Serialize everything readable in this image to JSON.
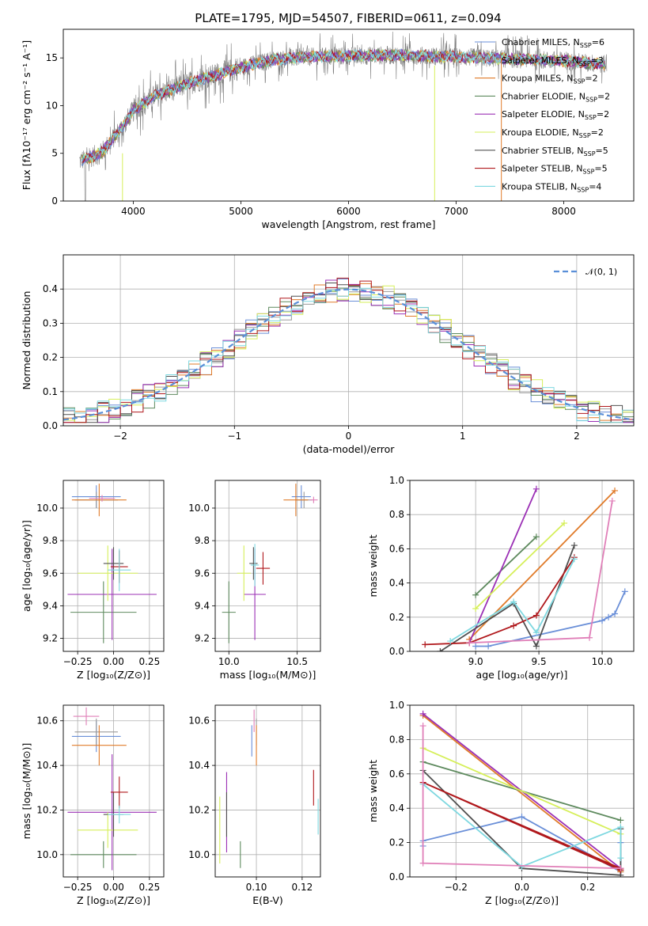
{
  "title": "PLATE=1795, MJD=54507, FIBERID=0611, z=0.094",
  "colors": {
    "chabrier_miles": "#6a8fd8",
    "salpeter_miles": "#9a9a9a",
    "kroupa_miles": "#e07b2a",
    "chabrier_elodie": "#5e8a5e",
    "salpeter_elodie": "#9b30b5",
    "kroupa_elodie": "#d6ef5a",
    "chabrier_stelib": "#505050",
    "salpeter_stelib": "#b0181c",
    "kroupa_stelib": "#7ed8e0",
    "pink": "#e07fb8",
    "gauss": "#5a8fd8"
  },
  "chart_data": [
    {
      "id": "spectrum",
      "type": "line",
      "xlabel": "wavelength [Angstrom, rest frame]",
      "ylabel": "Flux [fλ10⁻¹⁷ erg cm⁻² s⁻¹ A⁻¹]",
      "xlim": [
        3350,
        8650
      ],
      "ylim": [
        0,
        18
      ],
      "xticks": [
        "4000",
        "5000",
        "6000",
        "7000",
        "8000"
      ],
      "yticks": [
        "0",
        "5",
        "10",
        "15"
      ],
      "legend_position": "top-right",
      "series": [
        {
          "name": "Chabrier MILES, N",
          "sub": "SSP",
          "suffix": "=6"
        },
        {
          "name": "Salpeter MILES, N",
          "sub": "SSP",
          "suffix": "=3"
        },
        {
          "name": "Kroupa MILES, N",
          "sub": "SSP",
          "suffix": "=2"
        },
        {
          "name": "Chabrier ELODIE, N",
          "sub": "SSP",
          "suffix": "=2"
        },
        {
          "name": "Salpeter ELODIE, N",
          "sub": "SSP",
          "suffix": "=2"
        },
        {
          "name": "Kroupa ELODIE, N",
          "sub": "SSP",
          "suffix": "=2"
        },
        {
          "name": "Chabrier STELIB, N",
          "sub": "SSP",
          "suffix": "=5"
        },
        {
          "name": "Salpeter STELIB, N",
          "sub": "SSP",
          "suffix": "=5"
        },
        {
          "name": "Kroupa STELIB, N",
          "sub": "SSP",
          "suffix": "=4"
        }
      ],
      "continuum": [
        [
          3500,
          4.2
        ],
        [
          3700,
          5.0
        ],
        [
          3900,
          7.8
        ],
        [
          4000,
          9.5
        ],
        [
          4200,
          11.0
        ],
        [
          4500,
          12.3
        ],
        [
          4800,
          13.3
        ],
        [
          5000,
          14.0
        ],
        [
          5300,
          14.8
        ],
        [
          5600,
          15.1
        ],
        [
          6000,
          15.2
        ],
        [
          6500,
          15.3
        ],
        [
          7000,
          15.1
        ],
        [
          7500,
          14.9
        ],
        [
          8000,
          14.7
        ],
        [
          8400,
          14.3
        ]
      ]
    },
    {
      "id": "residual-hist",
      "type": "bar",
      "xlabel": "(data-model)/error",
      "ylabel": "Normed distribution",
      "xlim": [
        -2.5,
        2.5
      ],
      "ylim": [
        0,
        0.5
      ],
      "xticks": [
        "−2",
        "−1",
        "0",
        "1",
        "2"
      ],
      "yticks": [
        "0.0",
        "0.1",
        "0.2",
        "0.3",
        "0.4"
      ],
      "legend": "𝒩(0, 1)",
      "legend_position": "top-right",
      "bin_width": 0.1,
      "gaussian": {
        "mean": 0,
        "sigma": 1
      }
    },
    {
      "id": "age-vs-Z",
      "type": "scatter",
      "xlabel": "Z [log₁₀(Z/Z⊙)]",
      "ylabel": "age  [log₁₀(age/yr)]",
      "xlim": [
        -0.35,
        0.35
      ],
      "ylim": [
        9.12,
        10.17
      ],
      "xticks": [
        "−0.25",
        "0.00",
        "0.25"
      ],
      "yticks": [
        "9.2",
        "9.4",
        "9.6",
        "9.8",
        "10.0"
      ],
      "points": [
        {
          "x": -0.12,
          "y": 10.07,
          "xerr": 0.17,
          "yerr": 0.07,
          "c": "chabrier_miles"
        },
        {
          "x": -0.12,
          "y": 10.05,
          "xerr": 0.15,
          "yerr": 0.05,
          "c": "salpeter_miles"
        },
        {
          "x": -0.1,
          "y": 10.05,
          "xerr": 0.19,
          "yerr": 0.1,
          "c": "kroupa_miles"
        },
        {
          "x": -0.07,
          "y": 9.36,
          "xerr": 0.23,
          "yerr": 0.19,
          "c": "chabrier_elodie"
        },
        {
          "x": -0.01,
          "y": 9.47,
          "xerr": 0.31,
          "yerr": 0.28,
          "c": "salpeter_elodie"
        },
        {
          "x": -0.04,
          "y": 9.6,
          "xerr": 0.21,
          "yerr": 0.17,
          "c": "kroupa_elodie"
        },
        {
          "x": 0.0,
          "y": 9.66,
          "xerr": 0.07,
          "yerr": 0.1,
          "c": "chabrier_stelib"
        },
        {
          "x": 0.04,
          "y": 9.64,
          "xerr": 0.06,
          "yerr": 0.1,
          "c": "salpeter_stelib"
        },
        {
          "x": 0.04,
          "y": 9.62,
          "xerr": 0.08,
          "yerr": 0.13,
          "c": "kroupa_stelib"
        },
        {
          "x": -0.08,
          "y": 10.06,
          "xerr": 0.09,
          "yerr": 0.02,
          "c": "pink"
        }
      ]
    },
    {
      "id": "age-vs-mass",
      "type": "scatter",
      "xlabel": "mass [log₁₀(M/M⊙)]",
      "ylabel": "",
      "xlim": [
        9.9,
        10.67
      ],
      "ylim": [
        9.12,
        10.17
      ],
      "xticks": [
        "10.0",
        "10.5"
      ],
      "yticks": [
        "9.2",
        "9.4",
        "9.6",
        "9.8",
        "10.0"
      ],
      "points": [
        {
          "x": 10.53,
          "y": 10.07,
          "xerr": 0.07,
          "yerr": 0.07,
          "c": "chabrier_miles"
        },
        {
          "x": 10.55,
          "y": 10.05,
          "xerr": 0.06,
          "yerr": 0.05,
          "c": "salpeter_miles"
        },
        {
          "x": 10.49,
          "y": 10.05,
          "xerr": 0.09,
          "yerr": 0.1,
          "c": "kroupa_miles"
        },
        {
          "x": 10.0,
          "y": 9.36,
          "xerr": 0.05,
          "yerr": 0.19,
          "c": "chabrier_elodie"
        },
        {
          "x": 10.19,
          "y": 9.47,
          "xerr": 0.08,
          "yerr": 0.28,
          "c": "salpeter_elodie"
        },
        {
          "x": 10.11,
          "y": 9.6,
          "xerr": 0.05,
          "yerr": 0.17,
          "c": "kroupa_elodie"
        },
        {
          "x": 10.18,
          "y": 9.66,
          "xerr": 0.03,
          "yerr": 0.1,
          "c": "chabrier_stelib"
        },
        {
          "x": 10.25,
          "y": 9.63,
          "xerr": 0.05,
          "yerr": 0.1,
          "c": "salpeter_stelib"
        },
        {
          "x": 10.19,
          "y": 9.65,
          "xerr": 0.03,
          "yerr": 0.13,
          "c": "kroupa_stelib"
        },
        {
          "x": 10.62,
          "y": 10.05,
          "xerr": 0.03,
          "yerr": 0.02,
          "c": "pink"
        }
      ]
    },
    {
      "id": "massweight-vs-age",
      "type": "line",
      "xlabel": "age  [log₁₀(age/yr)]",
      "ylabel": "mass weight",
      "xlim": [
        8.48,
        10.25
      ],
      "ylim": [
        0,
        1.0
      ],
      "xticks": [
        "9.0",
        "9.5",
        "10.0"
      ],
      "yticks": [
        "0.0",
        "0.2",
        "0.4",
        "0.6",
        "0.8",
        "1.0"
      ],
      "series": [
        {
          "c": "chabrier_miles",
          "pts": [
            [
              9.0,
              0.03
            ],
            [
              9.1,
              0.03
            ],
            [
              10.0,
              0.18
            ],
            [
              10.05,
              0.2
            ],
            [
              10.1,
              0.22
            ],
            [
              10.18,
              0.35
            ]
          ]
        },
        {
          "c": "kroupa_miles",
          "pts": [
            [
              8.95,
              0.07
            ],
            [
              10.1,
              0.94
            ]
          ]
        },
        {
          "c": "chabrier_elodie",
          "pts": [
            [
              9.0,
              0.33
            ],
            [
              9.48,
              0.67
            ]
          ]
        },
        {
          "c": "salpeter_elodie",
          "pts": [
            [
              8.95,
              0.05
            ],
            [
              9.48,
              0.95
            ]
          ]
        },
        {
          "c": "kroupa_elodie",
          "pts": [
            [
              9.0,
              0.25
            ],
            [
              9.7,
              0.75
            ]
          ]
        },
        {
          "c": "chabrier_stelib",
          "pts": [
            [
              8.72,
              0.0
            ],
            [
              9.3,
              0.28
            ],
            [
              9.48,
              0.03
            ],
            [
              9.78,
              0.62
            ]
          ]
        },
        {
          "c": "salpeter_stelib",
          "pts": [
            [
              8.6,
              0.04
            ],
            [
              8.95,
              0.05
            ],
            [
              9.3,
              0.15
            ],
            [
              9.48,
              0.21
            ],
            [
              9.78,
              0.55
            ]
          ]
        },
        {
          "c": "kroupa_stelib",
          "pts": [
            [
              8.8,
              0.06
            ],
            [
              9.3,
              0.29
            ],
            [
              9.48,
              0.11
            ],
            [
              9.78,
              0.54
            ]
          ]
        },
        {
          "c": "pink",
          "pts": [
            [
              8.95,
              0.05
            ],
            [
              9.9,
              0.08
            ],
            [
              10.08,
              0.88
            ]
          ]
        }
      ]
    },
    {
      "id": "mass-vs-Z",
      "type": "scatter",
      "xlabel": "Z [log₁₀(Z/Z⊙)]",
      "ylabel": "mass [log₁₀(M/M⊙)]",
      "xlim": [
        -0.35,
        0.35
      ],
      "ylim": [
        9.9,
        10.67
      ],
      "xticks": [
        "−0.25",
        "0.00",
        "0.25"
      ],
      "yticks": [
        "10.0",
        "10.2",
        "10.4",
        "10.6"
      ],
      "points": [
        {
          "x": -0.12,
          "y": 10.53,
          "xerr": 0.17,
          "yerr": 0.07,
          "c": "chabrier_miles"
        },
        {
          "x": -0.12,
          "y": 10.55,
          "xerr": 0.15,
          "yerr": 0.06,
          "c": "salpeter_miles"
        },
        {
          "x": -0.1,
          "y": 10.49,
          "xerr": 0.19,
          "yerr": 0.09,
          "c": "kroupa_miles"
        },
        {
          "x": -0.07,
          "y": 10.0,
          "xerr": 0.23,
          "yerr": 0.06,
          "c": "chabrier_elodie"
        },
        {
          "x": -0.01,
          "y": 10.19,
          "xerr": 0.31,
          "yerr": 0.26,
          "c": "salpeter_elodie"
        },
        {
          "x": -0.04,
          "y": 10.11,
          "xerr": 0.21,
          "yerr": 0.08,
          "c": "kroupa_elodie"
        },
        {
          "x": 0.0,
          "y": 10.18,
          "xerr": 0.07,
          "yerr": 0.1,
          "c": "chabrier_stelib"
        },
        {
          "x": 0.04,
          "y": 10.28,
          "xerr": 0.06,
          "yerr": 0.07,
          "c": "salpeter_stelib"
        },
        {
          "x": 0.04,
          "y": 10.18,
          "xerr": 0.08,
          "yerr": 0.04,
          "c": "kroupa_stelib"
        },
        {
          "x": -0.19,
          "y": 10.62,
          "xerr": 0.09,
          "yerr": 0.04,
          "c": "pink"
        }
      ]
    },
    {
      "id": "mass-vs-ebv",
      "type": "scatter",
      "xlabel": "E(B-V)",
      "ylabel": "",
      "xlim": [
        0.082,
        0.128
      ],
      "ylim": [
        9.9,
        10.67
      ],
      "xticks": [
        "0.10",
        "0.12"
      ],
      "yticks": [
        "10.0",
        "10.2",
        "10.4",
        "10.6"
      ],
      "points": [
        {
          "x": 0.098,
          "y": 10.51,
          "xerr": 0.0,
          "yerr": 0.07,
          "c": "chabrier_miles"
        },
        {
          "x": 0.1,
          "y": 10.55,
          "xerr": 0.0,
          "yerr": 0.06,
          "c": "salpeter_miles"
        },
        {
          "x": 0.1,
          "y": 10.49,
          "xerr": 0.0,
          "yerr": 0.09,
          "c": "kroupa_miles"
        },
        {
          "x": 0.093,
          "y": 10.0,
          "xerr": 0.0,
          "yerr": 0.06,
          "c": "chabrier_elodie"
        },
        {
          "x": 0.087,
          "y": 10.19,
          "xerr": 0.0,
          "yerr": 0.18,
          "c": "salpeter_elodie"
        },
        {
          "x": 0.084,
          "y": 10.11,
          "xerr": 0.0,
          "yerr": 0.15,
          "c": "kroupa_elodie"
        },
        {
          "x": 0.087,
          "y": 10.18,
          "xerr": 0.0,
          "yerr": 0.1,
          "c": "chabrier_stelib"
        },
        {
          "x": 0.125,
          "y": 10.3,
          "xerr": 0.0,
          "yerr": 0.08,
          "c": "salpeter_stelib"
        },
        {
          "x": 0.127,
          "y": 10.17,
          "xerr": 0.0,
          "yerr": 0.08,
          "c": "kroupa_stelib"
        },
        {
          "x": 0.099,
          "y": 10.6,
          "xerr": 0.0,
          "yerr": 0.05,
          "c": "pink"
        }
      ]
    },
    {
      "id": "massweight-vs-Z",
      "type": "line",
      "xlabel": "Z [log₁₀(Z/Z⊙)]",
      "ylabel": "mass weight",
      "xlim": [
        -0.34,
        0.34
      ],
      "ylim": [
        0,
        1.0
      ],
      "xticks": [
        "−0.2",
        "0.0",
        "0.2"
      ],
      "yticks": [
        "0.0",
        "0.2",
        "0.4",
        "0.6",
        "0.8",
        "1.0"
      ],
      "series": [
        {
          "c": "chabrier_miles",
          "pts": [
            [
              -0.3,
              0.18
            ],
            [
              -0.3,
              0.21
            ],
            [
              0.0,
              0.35
            ],
            [
              0.3,
              0.03
            ],
            [
              0.3,
              0.2
            ]
          ]
        },
        {
          "c": "kroupa_miles",
          "pts": [
            [
              -0.3,
              0.94
            ],
            [
              0.3,
              0.03
            ]
          ]
        },
        {
          "c": "chabrier_elodie",
          "pts": [
            [
              -0.3,
              0.67
            ],
            [
              0.3,
              0.33
            ]
          ]
        },
        {
          "c": "salpeter_elodie",
          "pts": [
            [
              -0.3,
              0.95
            ],
            [
              0.3,
              0.05
            ]
          ]
        },
        {
          "c": "kroupa_elodie",
          "pts": [
            [
              -0.3,
              0.75
            ],
            [
              0.3,
              0.25
            ]
          ]
        },
        {
          "c": "chabrier_stelib",
          "pts": [
            [
              -0.3,
              0.62
            ],
            [
              0.0,
              0.05
            ],
            [
              0.3,
              0.01
            ],
            [
              0.3,
              0.28
            ]
          ]
        },
        {
          "c": "salpeter_stelib",
          "pts": [
            [
              0.3,
              0.04
            ],
            [
              0.3,
              0.05
            ],
            [
              -0.3,
              0.55
            ],
            [
              0.3,
              0.04
            ]
          ]
        },
        {
          "c": "kroupa_stelib",
          "pts": [
            [
              -0.3,
              0.54
            ],
            [
              0.0,
              0.06
            ],
            [
              0.3,
              0.29
            ],
            [
              0.3,
              0.11
            ]
          ]
        },
        {
          "c": "pink",
          "pts": [
            [
              -0.3,
              0.88
            ],
            [
              -0.3,
              0.08
            ],
            [
              0.3,
              0.05
            ]
          ]
        }
      ]
    }
  ]
}
